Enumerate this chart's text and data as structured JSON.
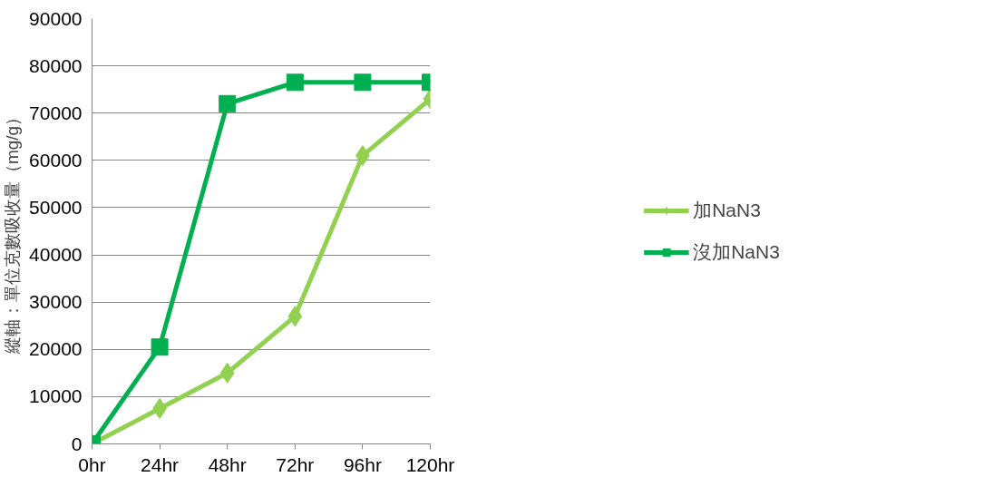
{
  "chart_data": {
    "type": "line",
    "ylabel": "縱軸：單位克數吸收量（mg/g）",
    "categories": [
      "0hr",
      "24hr",
      "48hr",
      "72hr",
      "96hr",
      "120hr"
    ],
    "series": [
      {
        "name": "加NaN3",
        "color": "#92d050",
        "marker": "diamond",
        "values": [
          0,
          7500,
          15000,
          27000,
          61000,
          73000
        ]
      },
      {
        "name": "沒加NaN3",
        "color": "#00b050",
        "marker": "square",
        "values": [
          0,
          20500,
          72000,
          76500,
          76500,
          76500
        ]
      }
    ],
    "ylim": [
      0,
      90000
    ],
    "yticks": [
      0,
      10000,
      20000,
      30000,
      40000,
      50000,
      60000,
      70000,
      80000,
      90000
    ],
    "grid": "y",
    "legend": "right",
    "line_style": "solid"
  }
}
